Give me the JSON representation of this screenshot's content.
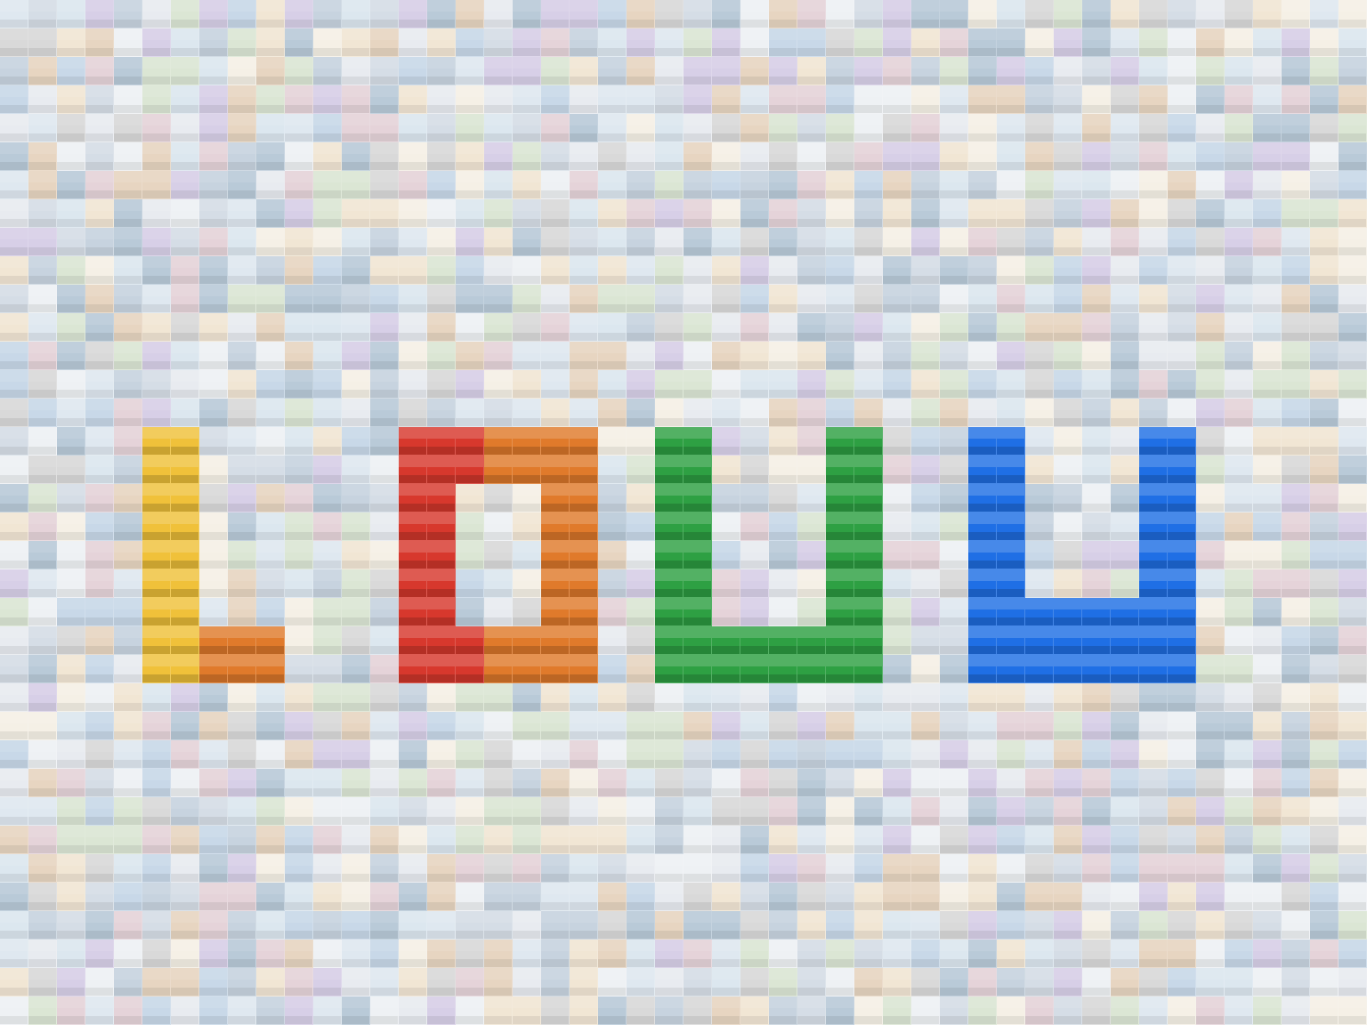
{
  "image": {
    "columns": 48,
    "rows": 36,
    "accent_colors": {
      "yellow": "#f0c13a",
      "orange": "#e07a2b",
      "red": "#d7382d",
      "green": "#2ea043",
      "blue": "#1f6fe5"
    },
    "neutral_palette": [
      "#dfe8f0",
      "#eef1f4",
      "#d5dde6",
      "#c8d8e8",
      "#f1e6d4",
      "#e7d5c1",
      "#dbe6d4",
      "#d7cfe7",
      "#e5d3d9",
      "#c7d3df",
      "#b9cad8",
      "#e8ebf0",
      "#d9d9d9",
      "#f5f0e6",
      "#dce7ef"
    ]
  }
}
